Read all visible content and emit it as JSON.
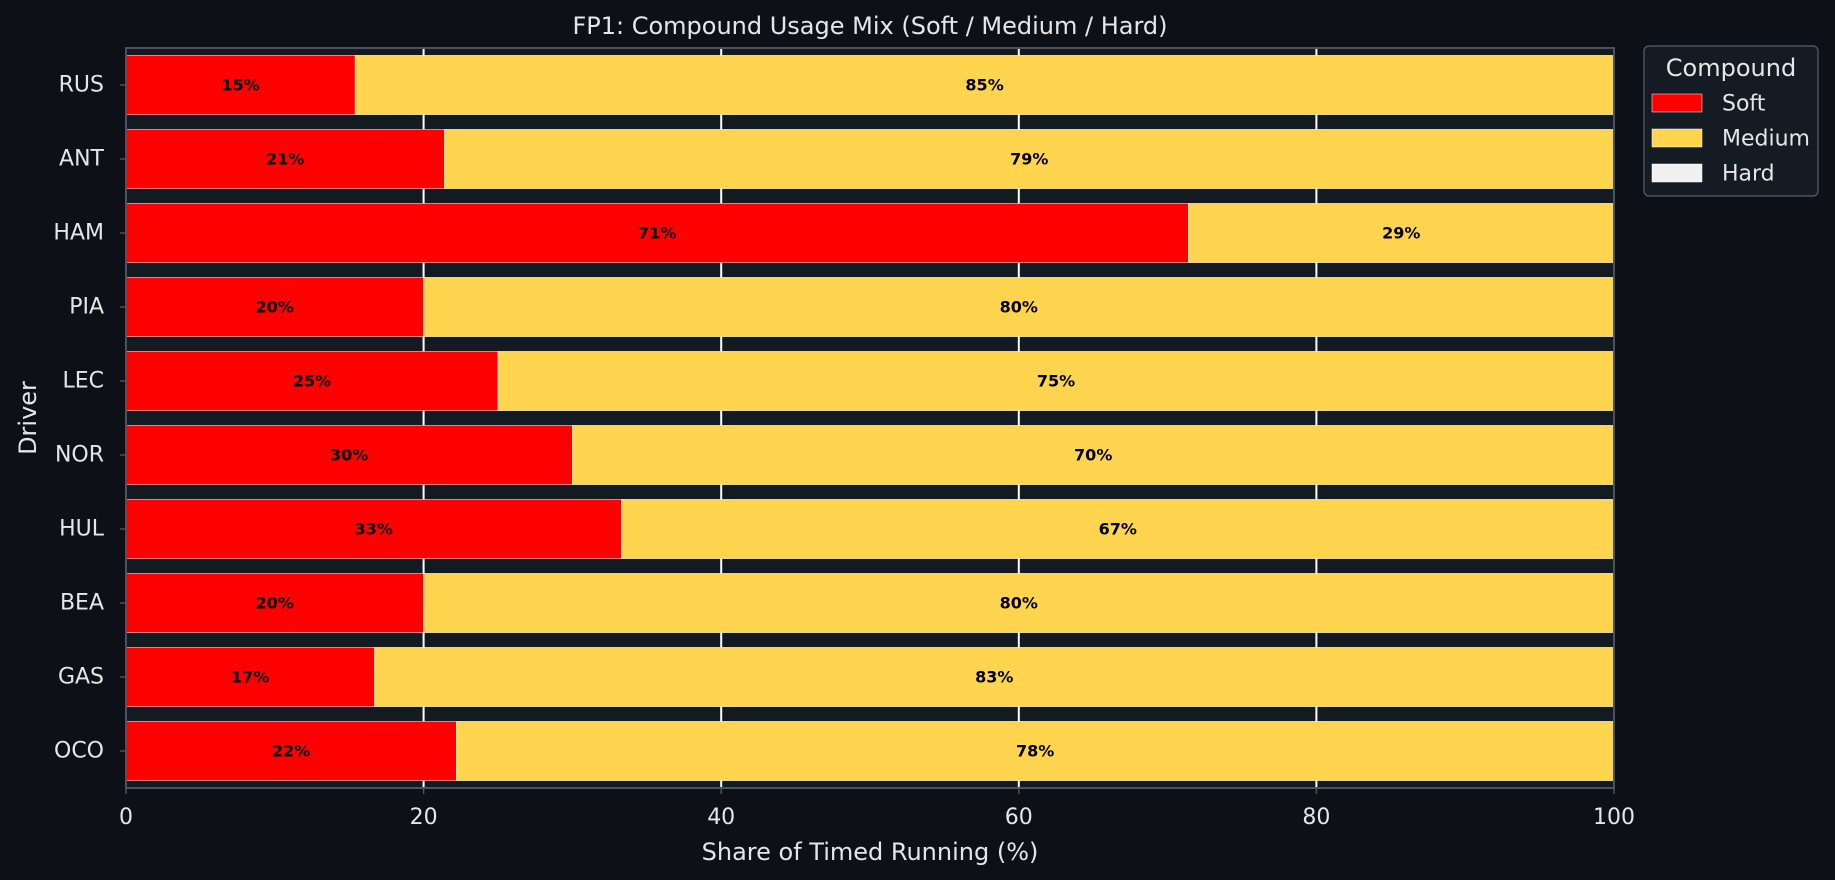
{
  "chart_data": {
    "type": "bar",
    "orientation": "horizontal",
    "stacked": true,
    "title": "FP1: Compound Usage Mix (Soft / Medium / Hard)",
    "xlabel": "Share of Timed Running (%)",
    "ylabel": "Driver",
    "xlim": [
      0,
      100
    ],
    "xticks": [
      0,
      20,
      40,
      60,
      80,
      100
    ],
    "grid": true,
    "legend_title": "Compound",
    "legend_position": "outside-top-right",
    "categories": [
      "RUS",
      "ANT",
      "HAM",
      "PIA",
      "LEC",
      "NOR",
      "HUL",
      "BEA",
      "GAS",
      "OCO"
    ],
    "series": [
      {
        "name": "Soft",
        "color": "#ff0000",
        "values": [
          15.4,
          21.4,
          71.4,
          20.0,
          25.0,
          30.0,
          33.3,
          20.0,
          16.7,
          22.2
        ],
        "labels": [
          "15%",
          "21%",
          "71%",
          "20%",
          "25%",
          "30%",
          "33%",
          "20%",
          "17%",
          "22%"
        ]
      },
      {
        "name": "Medium",
        "color": "#ffd54f",
        "values": [
          84.6,
          78.6,
          28.6,
          80.0,
          75.0,
          70.0,
          66.7,
          80.0,
          83.3,
          77.8
        ],
        "labels": [
          "85%",
          "79%",
          "29%",
          "80%",
          "75%",
          "70%",
          "67%",
          "80%",
          "83%",
          "78%"
        ]
      },
      {
        "name": "Hard",
        "color": "#f0f0f0",
        "values": [
          0,
          0,
          0,
          0,
          0,
          0,
          0,
          0,
          0,
          0
        ],
        "labels": [
          "",
          "",
          "",
          "",
          "",
          "",
          "",
          "",
          "",
          ""
        ]
      }
    ],
    "colors": {
      "background": "#0d1117",
      "plot_background": "#141a21",
      "grid": "#ffffff",
      "spine": "#4a5260",
      "text": "#e6e6e6"
    }
  }
}
